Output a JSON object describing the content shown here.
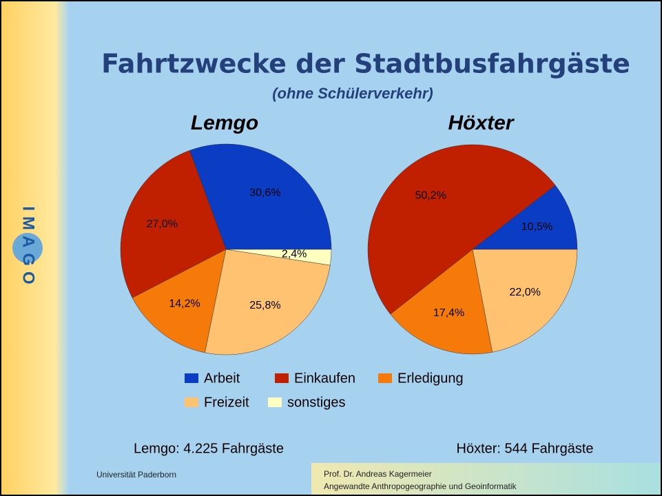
{
  "slide": {
    "logo": "IMAGO",
    "title": "Fahrtzwecke der Stadtbusfahrgäste",
    "subtitle": "(ohne Schülerverkehr)",
    "footer_left": "Universität Paderborn",
    "footer_right": [
      "Prof. Dr. Andreas Kagermeier",
      "Angewandte Anthropogeographie und Geoinformatik"
    ]
  },
  "chart_data": [
    {
      "type": "pie",
      "title": "Lemgo",
      "caption": "Lemgo: 4.225 Fahrgäste",
      "start_angle": 0,
      "direction": "counterclockwise",
      "categories": [
        "Arbeit",
        "Einkaufen",
        "Erledigung",
        "Freizeit",
        "sonstiges"
      ],
      "values": [
        30.6,
        27.0,
        14.2,
        25.8,
        2.4
      ],
      "value_labels": [
        "30,6%",
        "27,0%",
        "14,2%",
        "25,8%",
        "2,4%"
      ],
      "colors": [
        "#0a3cc4",
        "#c02000",
        "#f57a0a",
        "#ffc270",
        "#ffffc0"
      ]
    },
    {
      "type": "pie",
      "title": "Höxter",
      "caption": "Höxter: 544 Fahrgäste",
      "start_angle": 0,
      "direction": "counterclockwise",
      "categories": [
        "Arbeit",
        "Einkaufen",
        "Erledigung",
        "Freizeit"
      ],
      "values": [
        10.5,
        50.2,
        17.4,
        22.0
      ],
      "value_labels": [
        "10,5%",
        "50,2%",
        "17,4%",
        "22,0%"
      ],
      "colors": [
        "#0a3cc4",
        "#c02000",
        "#f57a0a",
        "#ffc270"
      ]
    }
  ]
}
